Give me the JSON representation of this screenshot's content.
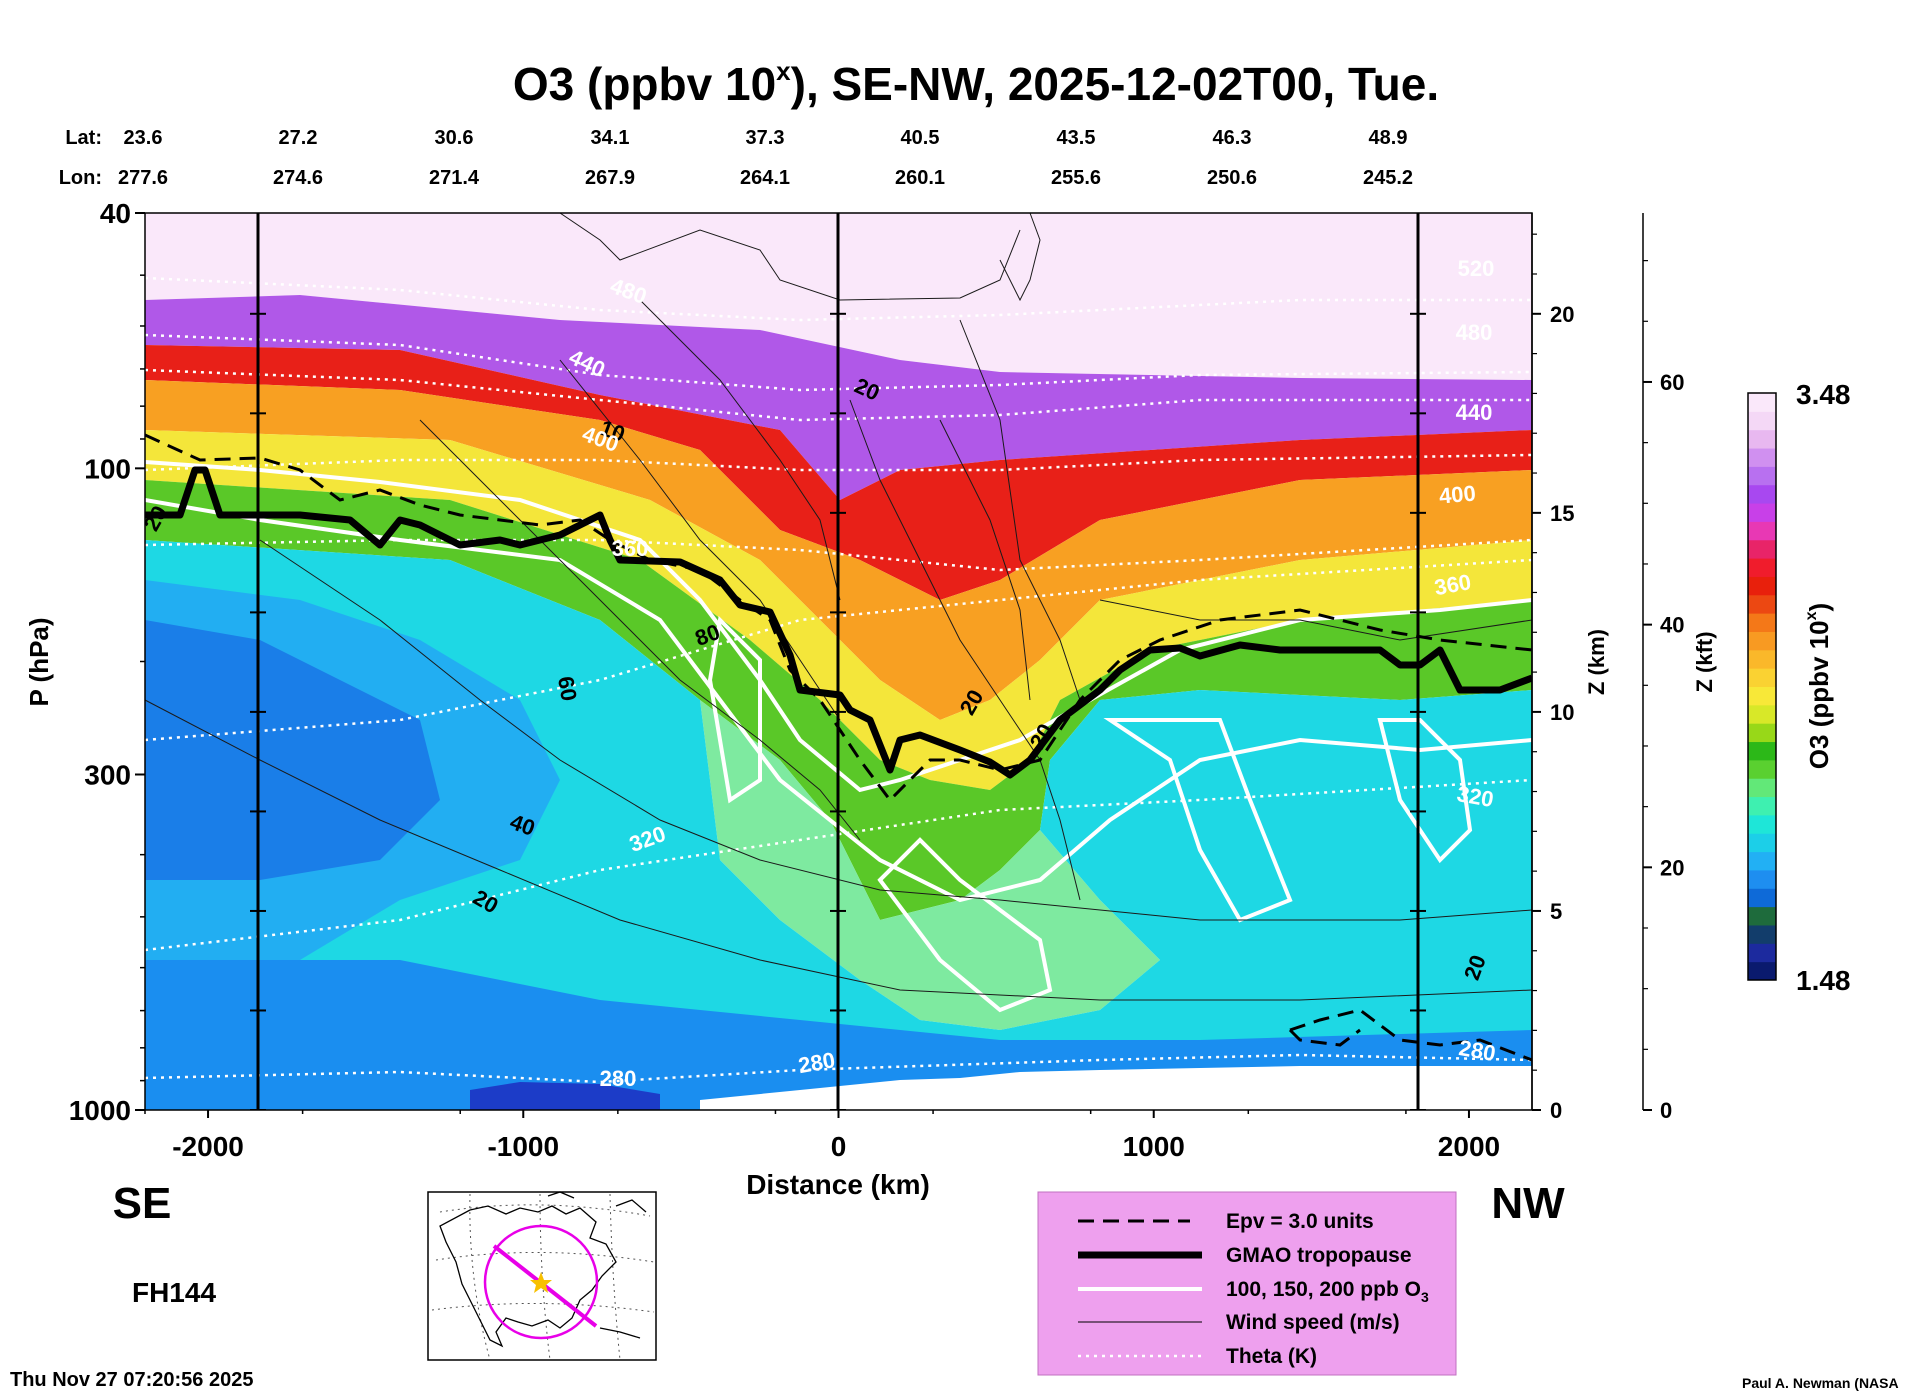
{
  "chart_data": {
    "type": "heatmap",
    "title_main": "O3 (ppbv 10",
    "title_sup": "x",
    "title_rest": "), SE-NW, 2025-12-02T00, Tue.",
    "lat_label": "Lat:",
    "lon_label": "Lon:",
    "lat": [
      "23.6",
      "27.2",
      "30.6",
      "34.1",
      "37.3",
      "40.5",
      "43.5",
      "46.3",
      "48.9"
    ],
    "lon": [
      "277.6",
      "274.6",
      "271.4",
      "267.9",
      "264.1",
      "260.1",
      "255.6",
      "250.6",
      "245.2"
    ],
    "xlabel": "Distance (km)",
    "xlim": [
      -2200,
      2200
    ],
    "xticks": [
      -2000,
      -1000,
      0,
      1000,
      2000
    ],
    "xtick_labels": [
      "-2000",
      "-1000",
      "0",
      "1000",
      "2000"
    ],
    "ylabel": "P (hPa)",
    "ylim": [
      1000,
      40
    ],
    "yticks": [
      40,
      100,
      300,
      1000
    ],
    "ytick_labels": [
      "40",
      "100",
      "300",
      "1000"
    ],
    "z_km_label": "Z (km)",
    "z_km_ticks": [
      "0",
      "5",
      "10",
      "15",
      "20"
    ],
    "z_kft_label": "Z (kft)",
    "z_kft_ticks": [
      "0",
      "20",
      "40",
      "60"
    ],
    "colorbar_label": "O3 (ppbv 10",
    "colorbar_sup": "x",
    "colorbar_label_end": ")",
    "colorbar_range": [
      1.48,
      3.48
    ],
    "colorbar_max_label": "3.48",
    "colorbar_min_label": "1.48",
    "colors": [
      "#0a1a6e",
      "#1c2a9e",
      "#123d6b",
      "#1e6b3c",
      "#0e6ad8",
      "#1e8ef0",
      "#22b0f4",
      "#1ccfe8",
      "#1ee6d8",
      "#3ef0b0",
      "#62e878",
      "#5ad030",
      "#2cb818",
      "#98d818",
      "#d8e828",
      "#f8e838",
      "#fad232",
      "#fab82a",
      "#f89a22",
      "#f47818",
      "#ec4812",
      "#e8200c",
      "#f01c2c",
      "#e82468",
      "#e838b4",
      "#c840e8",
      "#a848f0",
      "#b870f0",
      "#d090f0",
      "#e8b8f0",
      "#f4d8f6",
      "#fae8fa"
    ],
    "wind_labels": [
      "20",
      "20",
      "40",
      "60",
      "80",
      "20",
      "10",
      "20",
      "20",
      "20"
    ],
    "theta_labels": [
      "280",
      "280",
      "320",
      "360",
      "400",
      "440",
      "480",
      "320",
      "360",
      "400",
      "440",
      "480",
      "520",
      "280"
    ],
    "side_left": "SE",
    "side_right": "NW"
  },
  "legend": {
    "epv": "Epv = 3.0 units",
    "tropopause": "GMAO tropopause",
    "ozone": "100, 150, 200 ppb O",
    "ozone_sub": "3",
    "wind": "Wind speed (m/s)",
    "theta": "Theta (K)",
    "background": "#eea0ee"
  },
  "forecast_hour": "FH144",
  "timestamp": "Thu Nov 27 07:20:56 2025",
  "credit": "Paul A. Newman (NASA"
}
